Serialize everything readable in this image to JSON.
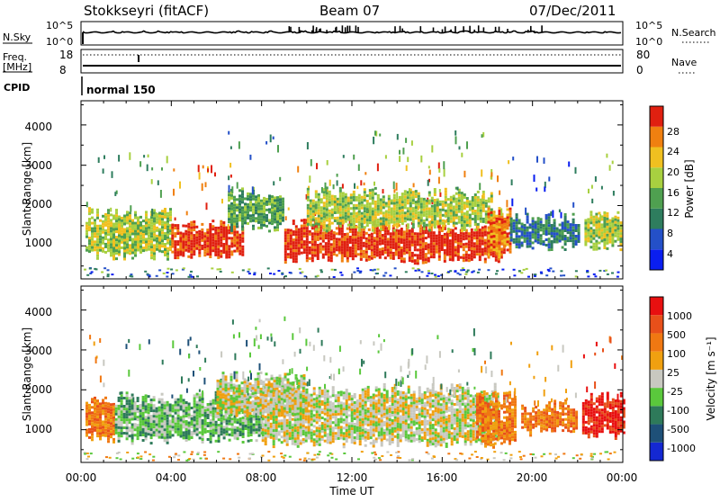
{
  "header": {
    "station": "Stokkseyri (fitACF)",
    "beam": "Beam 07",
    "date": "07/Dec/2011"
  },
  "status": {
    "nsky_label": "N.Sky",
    "nsky_ticks": [
      "10^5",
      "10^0"
    ],
    "nsearch_label": "N.Search",
    "nsearch_ticks": [
      "10^5",
      "10^0"
    ],
    "freq_label_line1": "Freq.",
    "freq_label_line2": "[MHz]",
    "freq_ticks": [
      "18",
      "8"
    ],
    "nave_label": "Nave",
    "nave_ticks": [
      "80",
      "0"
    ],
    "cpid_label": "CPID",
    "cpid_value": "normal 150"
  },
  "colors": {
    "power_scale": [
      "#0a1ef0",
      "#2450c8",
      "#2e7d5e",
      "#4fa050",
      "#a8d040",
      "#f0c020",
      "#f08010",
      "#e02010"
    ],
    "velocity_scale": [
      "#1428d2",
      "#1e5078",
      "#2e7a5a",
      "#5ac83c",
      "#c8c8c0",
      "#f0a010",
      "#f07812",
      "#e8501a",
      "#e81010"
    ]
  },
  "chart_data": [
    {
      "type": "heatmap",
      "name": "power",
      "ylabel": "Slant Range [km]",
      "ylim": [
        180,
        4600
      ],
      "y_ticks": [
        "4000",
        "3000",
        "2000",
        "1000"
      ],
      "x_ticks": [
        "00:00",
        "04:00",
        "08:00",
        "12:00",
        "16:00",
        "20:00",
        "00:00"
      ],
      "colorbar_label": "Power [dB]",
      "colorbar_ticks": [
        "28",
        "24",
        "20",
        "16",
        "12",
        "8",
        "4"
      ],
      "bands": [
        {
          "start": 0.2,
          "end": 4.0,
          "r_lo": 800,
          "r_hi": 1800,
          "level": 4
        },
        {
          "start": 4.0,
          "end": 7.2,
          "r_lo": 800,
          "r_hi": 1500,
          "level": 7
        },
        {
          "start": 6.5,
          "end": 9.0,
          "r_lo": 1500,
          "r_hi": 2300,
          "level": 3
        },
        {
          "start": 9.0,
          "end": 18.8,
          "r_lo": 700,
          "r_hi": 1500,
          "level": 7
        },
        {
          "start": 10.0,
          "end": 18.2,
          "r_lo": 1500,
          "r_hi": 2300,
          "level": 4
        },
        {
          "start": 18.0,
          "end": 19.0,
          "r_lo": 800,
          "r_hi": 1800,
          "level": 6
        },
        {
          "start": 19.0,
          "end": 22.0,
          "r_lo": 1000,
          "r_hi": 1700,
          "level": 2
        },
        {
          "start": 22.3,
          "end": 23.9,
          "r_lo": 1000,
          "r_hi": 1700,
          "level": 4
        }
      ]
    },
    {
      "type": "heatmap",
      "name": "velocity",
      "ylabel": "Slant Range [km]",
      "ylim": [
        180,
        4600
      ],
      "y_ticks": [
        "4000",
        "3000",
        "2000",
        "1000"
      ],
      "x_ticks": [
        "00:00",
        "04:00",
        "08:00",
        "12:00",
        "16:00",
        "20:00",
        "00:00"
      ],
      "xlabel": "Time UT",
      "colorbar_label": "Velocity [m s⁻¹]",
      "colorbar_ticks": [
        "1000",
        "500",
        "100",
        "25",
        "-25",
        "-100",
        "-500",
        "-1000"
      ],
      "bands": [
        {
          "start": 0.2,
          "end": 1.5,
          "r_lo": 800,
          "r_hi": 1800,
          "level": 6
        },
        {
          "start": 1.5,
          "end": 8.0,
          "r_lo": 800,
          "r_hi": 1800,
          "level": 3
        },
        {
          "start": 6.0,
          "end": 10.0,
          "r_lo": 1400,
          "r_hi": 2300,
          "level": 4
        },
        {
          "start": 8.0,
          "end": 18.5,
          "r_lo": 700,
          "r_hi": 2000,
          "level": 4
        },
        {
          "start": 17.5,
          "end": 19.2,
          "r_lo": 700,
          "r_hi": 1800,
          "level": 6
        },
        {
          "start": 19.5,
          "end": 22.0,
          "r_lo": 1000,
          "r_hi": 1600,
          "level": 6
        },
        {
          "start": 22.2,
          "end": 24.0,
          "r_lo": 900,
          "r_hi": 1800,
          "level": 8
        }
      ]
    }
  ]
}
